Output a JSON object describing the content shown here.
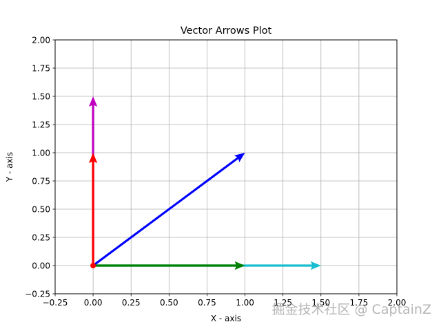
{
  "chart_data": {
    "type": "quiver",
    "title": "Vector Arrows Plot",
    "xlabel": "X - axis",
    "ylabel": "Y - axis",
    "xlim": [
      -0.25,
      2.0
    ],
    "ylim": [
      -0.25,
      2.0
    ],
    "xticks": [
      -0.25,
      0.0,
      0.25,
      0.5,
      0.75,
      1.0,
      1.25,
      1.5,
      1.75,
      2.0
    ],
    "yticks": [
      -0.25,
      0.0,
      0.25,
      0.5,
      0.75,
      1.0,
      1.25,
      1.5,
      1.75,
      2.0
    ],
    "xtick_labels": [
      "−0.25",
      "0.00",
      "0.25",
      "0.50",
      "0.75",
      "1.00",
      "1.25",
      "1.50",
      "1.75",
      "2.00"
    ],
    "ytick_labels": [
      "−0.25",
      "0.00",
      "0.25",
      "0.50",
      "0.75",
      "1.00",
      "1.25",
      "1.50",
      "1.75",
      "2.00"
    ],
    "grid": true,
    "origin": {
      "x": 0,
      "y": 0,
      "color": "#ff0000"
    },
    "vectors": [
      {
        "x": 0,
        "y": 0,
        "dx": 1.5,
        "dy": 0,
        "color": "#17becf"
      },
      {
        "x": 0,
        "y": 0,
        "dx": 1.0,
        "dy": 0,
        "color": "#008000"
      },
      {
        "x": 0,
        "y": 0,
        "dx": 0,
        "dy": 1.5,
        "color": "#bf00bf"
      },
      {
        "x": 0,
        "y": 0,
        "dx": 0,
        "dy": 1.0,
        "color": "#ff0000"
      },
      {
        "x": 0,
        "y": 0,
        "dx": 1.0,
        "dy": 1.0,
        "color": "#0000ff"
      }
    ]
  },
  "watermark": "掘金技术社区 @ CaptainZ"
}
